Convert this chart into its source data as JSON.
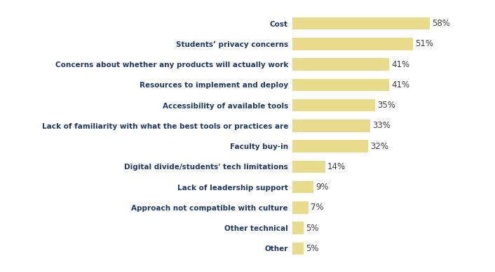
{
  "categories": [
    "Other",
    "Other technical",
    "Approach not compatible with culture",
    "Lack of leadership support",
    "Digital divide/students' tech limitations",
    "Faculty buy-in",
    "Lack of familiarity with what the best tools or practices are",
    "Accessibility of available tools",
    "Resources to implement and deploy",
    "Concerns about whether any products will actually work",
    "Students’ privacy concerns",
    "Cost"
  ],
  "values": [
    5,
    5,
    7,
    9,
    14,
    32,
    33,
    35,
    41,
    41,
    51,
    58
  ],
  "bar_color": "#E8DC8C",
  "label_color": "#1F3864",
  "pct_color": "#404040",
  "bar_height": 0.6,
  "xlim": [
    0,
    75
  ],
  "figsize": [
    7.06,
    3.89
  ],
  "dpi": 100,
  "label_fontsize": 7.5,
  "pct_fontsize": 8.5
}
